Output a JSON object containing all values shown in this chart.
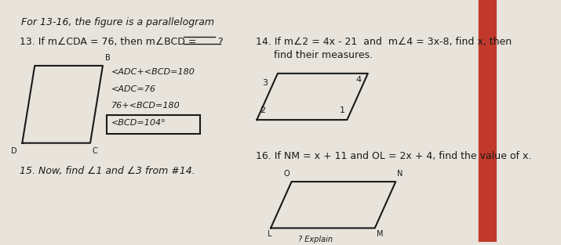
{
  "bg_color": "#e8e4dc",
  "paper_color": "#f0ece4",
  "title_text": "For 13-16, the figure is a parallelogram",
  "title_fontsize": 9,
  "q13_label": "13. If m∠CDA = 76, then m∠BCD = ",
  "q13_blank": "?",
  "q13_fontsize": 9,
  "q13_work": [
    "<ADC+<BCD=180",
    "<ADC=76",
    "76+<BCD=180",
    "<BCD=104°"
  ],
  "q13_work_fontsize": 8,
  "q14_line1": "14. If m∠2 = 4x - 21  and  m∠4 = 3x-8, find x, then",
  "q14_line2": "find their measures.",
  "q14_fontsize": 9,
  "q15_text": "15. Now, find ∠1 and ∠3 from #14.",
  "q15_fontsize": 9,
  "q16_text": "16. If NM = x + 11 and OL = 2x + 4, find the value of x.",
  "q16_fontsize": 9,
  "explain_text": "? Explain",
  "text_color": "#1a1a1a",
  "red_right": "#c0392b"
}
